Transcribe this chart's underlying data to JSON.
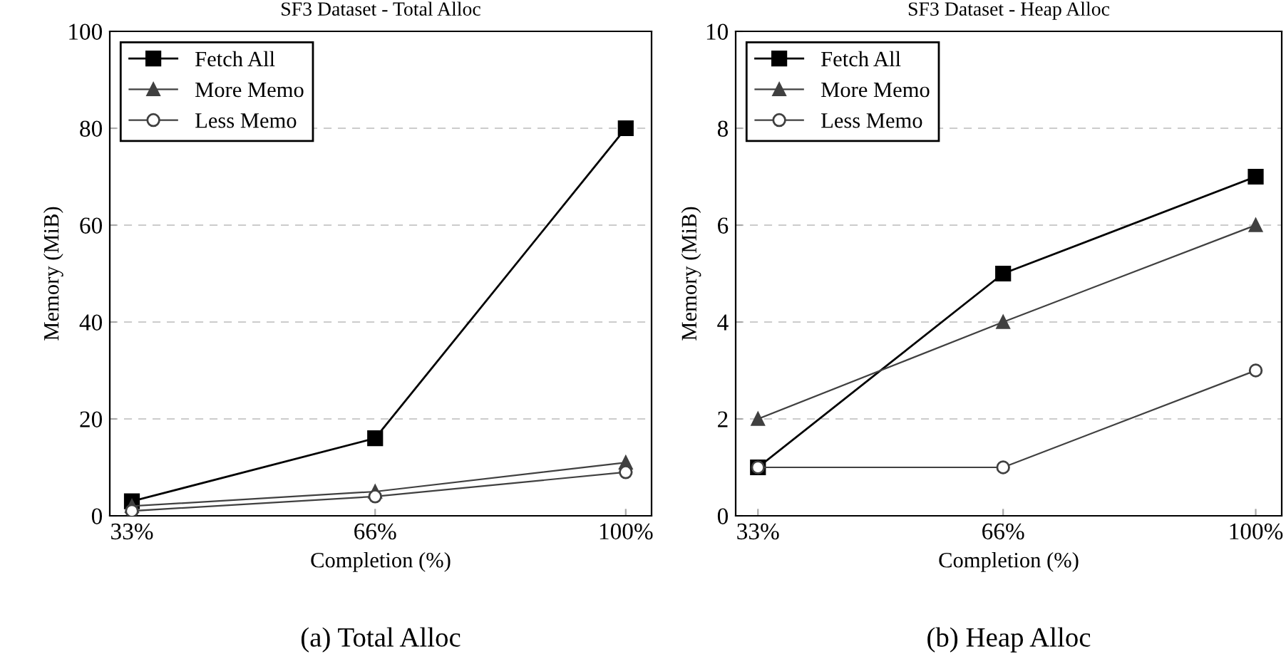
{
  "chart_data": [
    {
      "type": "line",
      "title": "SF3 Dataset - Total Alloc",
      "xlabel": "Completion (%)",
      "ylabel": "Memory (MiB)",
      "annotations": [
        "(a) Total Alloc"
      ],
      "x": [
        33,
        66,
        100
      ],
      "xlim": [
        30,
        103.5
      ],
      "xticks": [
        {
          "value": 33,
          "label": "33%"
        },
        {
          "value": 66,
          "label": "66%"
        },
        {
          "value": 100,
          "label": "100%"
        }
      ],
      "ylim": [
        0,
        100
      ],
      "yticks": [
        0,
        20,
        40,
        60,
        80,
        100
      ],
      "grid": "y",
      "legend": "top left",
      "series": [
        {
          "name": "Fetch All",
          "color": "#000000",
          "marker": "square",
          "values": [
            3,
            16,
            80
          ]
        },
        {
          "name": "More Memo",
          "color": "#404040",
          "marker": "triangle",
          "values": [
            2,
            5,
            11
          ]
        },
        {
          "name": "Less Memo",
          "color": "#404040",
          "marker": "circle",
          "values": [
            1,
            4,
            9
          ]
        }
      ]
    },
    {
      "type": "line",
      "title": "SF3 Dataset - Heap Alloc",
      "xlabel": "Completion (%)",
      "ylabel": "Memory (MiB)",
      "annotations": [
        "(b) Heap Alloc"
      ],
      "x": [
        33,
        66,
        100
      ],
      "xlim": [
        30,
        103.5
      ],
      "xticks": [
        {
          "value": 33,
          "label": "33%"
        },
        {
          "value": 66,
          "label": "66%"
        },
        {
          "value": 100,
          "label": "100%"
        }
      ],
      "ylim": [
        0,
        10
      ],
      "yticks": [
        0,
        2,
        4,
        6,
        8,
        10
      ],
      "grid": "y",
      "legend": "top left",
      "series": [
        {
          "name": "Fetch All",
          "color": "#000000",
          "marker": "square",
          "values": [
            1,
            5,
            7
          ]
        },
        {
          "name": "More Memo",
          "color": "#404040",
          "marker": "triangle",
          "values": [
            2,
            4,
            6
          ]
        },
        {
          "name": "Less Memo",
          "color": "#404040",
          "marker": "circle",
          "values": [
            1,
            1,
            3
          ]
        }
      ]
    }
  ]
}
